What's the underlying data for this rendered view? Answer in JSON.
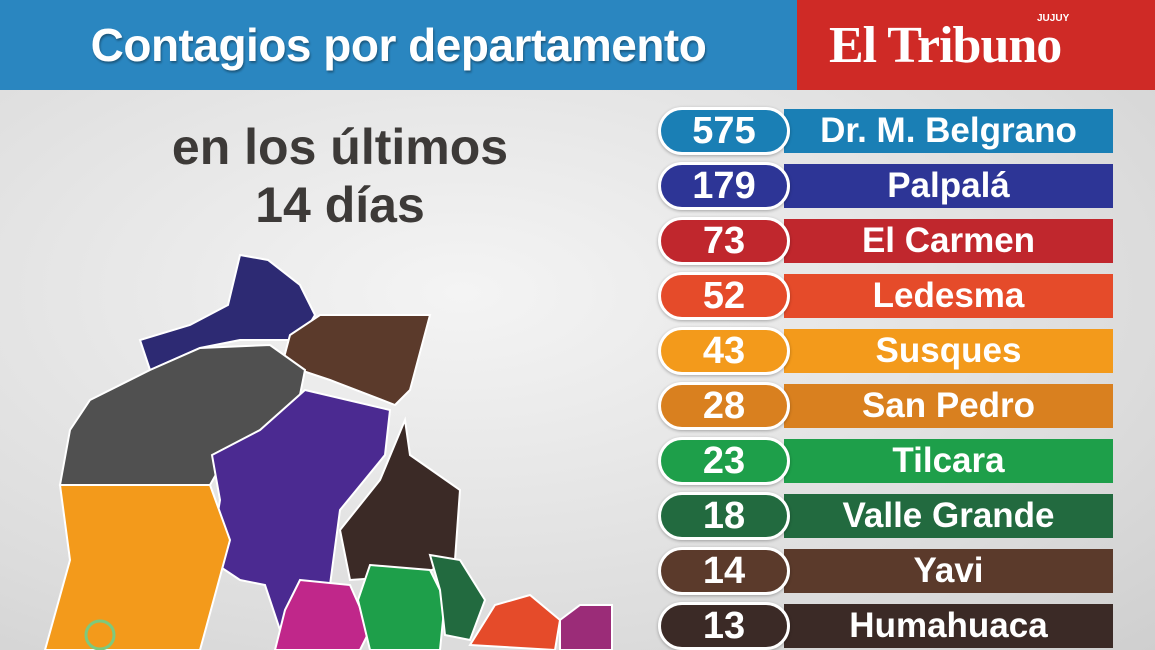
{
  "header": {
    "title": "Contagios por departamento",
    "brand": "El Tribuno",
    "brand_tag": "JUJUY"
  },
  "subtitle": [
    "en los últimos",
    "14 días"
  ],
  "rows": [
    {
      "value": "575",
      "label": "Dr. M. Belgrano",
      "color": "#1a7fb5"
    },
    {
      "value": "179",
      "label": "Palpalá",
      "color": "#2d3596"
    },
    {
      "value": "73",
      "label": "El Carmen",
      "color": "#c0272d"
    },
    {
      "value": "52",
      "label": "Ledesma",
      "color": "#e54b2a"
    },
    {
      "value": "43",
      "label": "Susques",
      "color": "#f39a1b"
    },
    {
      "value": "28",
      "label": "San Pedro",
      "color": "#d9801f"
    },
    {
      "value": "23",
      "label": "Tilcara",
      "color": "#1e9f4a"
    },
    {
      "value": "18",
      "label": "Valle Grande",
      "color": "#226a3f"
    },
    {
      "value": "14",
      "label": "Yavi",
      "color": "#5b3a2b"
    },
    {
      "value": "13",
      "label": "Humahuaca",
      "color": "#3b2a26"
    }
  ]
}
